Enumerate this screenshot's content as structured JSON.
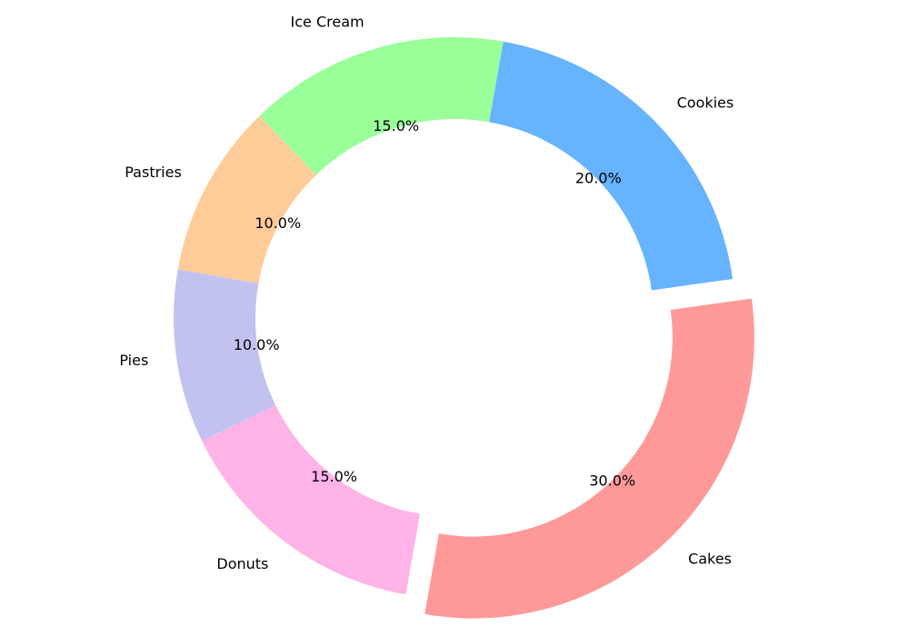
{
  "chart_data": {
    "type": "pie",
    "variant": "donut",
    "title": "",
    "categories": [
      "Cakes",
      "Cookies",
      "Ice Cream",
      "Pastries",
      "Pies",
      "Donuts"
    ],
    "values": [
      30.0,
      20.0,
      15.0,
      10.0,
      10.0,
      15.0
    ],
    "percent_labels": [
      "30.0%",
      "20.0%",
      "15.0%",
      "10.0%",
      "10.0%",
      "15.0%"
    ],
    "colors": [
      "#ff9999",
      "#66b3ff",
      "#99ff99",
      "#ffcc99",
      "#c2c2f0",
      "#ffb3e6"
    ],
    "exploded": [
      "Cakes"
    ],
    "legend": "none"
  }
}
